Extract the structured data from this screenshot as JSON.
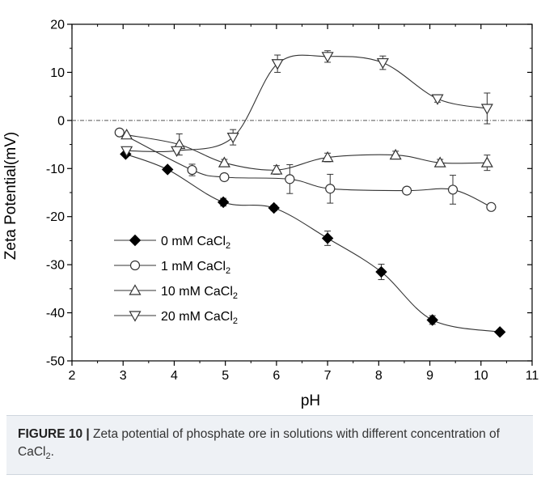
{
  "chart_data": {
    "type": "line",
    "xlabel": "pH",
    "ylabel": "Zeta Potential(mV)",
    "xlim": [
      2,
      11
    ],
    "ylim": [
      -50,
      20
    ],
    "xticks": [
      "2",
      "3",
      "4",
      "5",
      "6",
      "7",
      "8",
      "9",
      "10",
      "11"
    ],
    "yticks": [
      "20",
      "10",
      "0",
      "-10",
      "-20",
      "-30",
      "-40",
      "-50"
    ],
    "reference_line_y": 0,
    "legend_position": "lower-left",
    "series": [
      {
        "name": "0 mM CaCl",
        "name_subscript": "2",
        "marker": "filled-diamond",
        "x": [
          3.05,
          3.87,
          4.96,
          5.95,
          7.0,
          8.05,
          9.05,
          10.37
        ],
        "y": [
          -7.0,
          -10.2,
          -17.0,
          -18.2,
          -24.5,
          -31.5,
          -41.5,
          -44.0
        ],
        "err": [
          0,
          0,
          0.8,
          0.6,
          1.5,
          1.6,
          0.9,
          0
        ]
      },
      {
        "name": "1 mM CaCl",
        "name_subscript": "2",
        "marker": "open-circle",
        "x": [
          2.93,
          4.35,
          4.98,
          6.26,
          7.05,
          8.55,
          9.45,
          10.2
        ],
        "y": [
          -2.5,
          -10.3,
          -11.8,
          -12.2,
          -14.2,
          -14.6,
          -14.4,
          -18.0
        ],
        "err": [
          0,
          1.2,
          0.7,
          3.0,
          3.0,
          0.6,
          3.0,
          0.6
        ]
      },
      {
        "name": "10 mM CaCl",
        "name_subscript": "2",
        "marker": "open-triangle-up",
        "x": [
          3.07,
          4.1,
          4.98,
          6.0,
          7.0,
          8.33,
          9.2,
          10.12
        ],
        "y": [
          -3.0,
          -5.0,
          -8.8,
          -10.3,
          -7.7,
          -7.2,
          -8.8,
          -8.8
        ],
        "err": [
          0,
          2.2,
          0.7,
          0.9,
          0.9,
          0.8,
          0.7,
          1.6
        ]
      },
      {
        "name": "20 mM CaCl",
        "name_subscript": "2",
        "marker": "open-triangle-down",
        "x": [
          3.07,
          4.05,
          5.15,
          6.02,
          7.0,
          8.08,
          9.15,
          10.12
        ],
        "y": [
          -6.3,
          -6.3,
          -3.5,
          11.8,
          13.3,
          12.0,
          4.5,
          2.5
        ],
        "err": [
          0,
          0,
          1.6,
          1.8,
          1.2,
          1.4,
          0.7,
          3.2
        ]
      }
    ]
  },
  "caption": {
    "label": "FIGURE 10 |",
    "text": " Zeta potential of phosphate ore in solutions with different concentration of CaCl",
    "subscript": "2",
    "end": "."
  },
  "colors": {
    "axis": "#000000",
    "series": "#333333",
    "caption_background": "#eef1f5"
  }
}
